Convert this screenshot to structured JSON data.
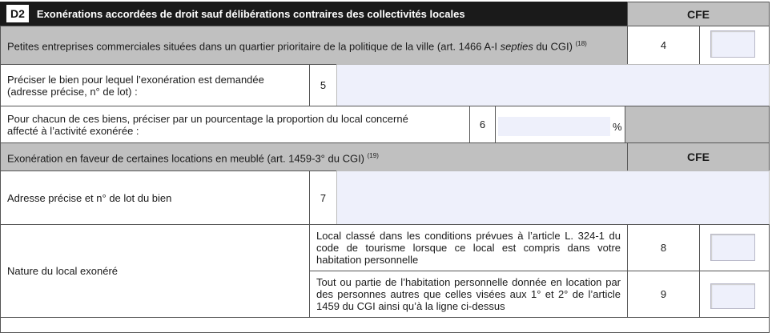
{
  "section": {
    "code": "D2",
    "title": "Exonérations accordées de droit sauf délibérations contraires des collectivités locales",
    "column": "CFE"
  },
  "row4": {
    "text": "Petites entreprises commerciales situées dans un quartier prioritaire de la politique de la ville (art. 1466 A-I ",
    "italic": "septies",
    "text2": " du CGI)",
    "note": "(18)",
    "num": "4",
    "checked": false
  },
  "row5": {
    "label": "Préciser le bien pour lequel l’exonération est demandée (adresse précise, n° de lot) :",
    "num": "5",
    "value": ""
  },
  "row6": {
    "label": "Pour  chacun de ces biens, préciser par un pourcentage la proportion du local concerné affecté à l’activité exonérée :",
    "num": "6",
    "value": "",
    "unit": "%"
  },
  "subsection": {
    "title": "Exonération en faveur de certaines locations en meublé (art. 1459-3° du CGI)",
    "note": "(19)",
    "column": "CFE"
  },
  "row7": {
    "label": "Adresse précise et n° de lot du bien",
    "num": "7",
    "value": ""
  },
  "nature": {
    "label": "Nature du local exonéré",
    "row8": {
      "text": "Local classé dans les conditions prévues à l’article L. 324-1 du code de tourisme lorsque ce local est compris dans votre habitation personnelle",
      "num": "8",
      "checked": false
    },
    "row9": {
      "text": "Tout ou partie de l’habitation personnelle donnée en location par des personnes autres que celles visées aux 1° et 2° de l’article 1459 du CGI ainsi qu’à la ligne ci-dessus",
      "num": "9",
      "checked": false
    }
  }
}
